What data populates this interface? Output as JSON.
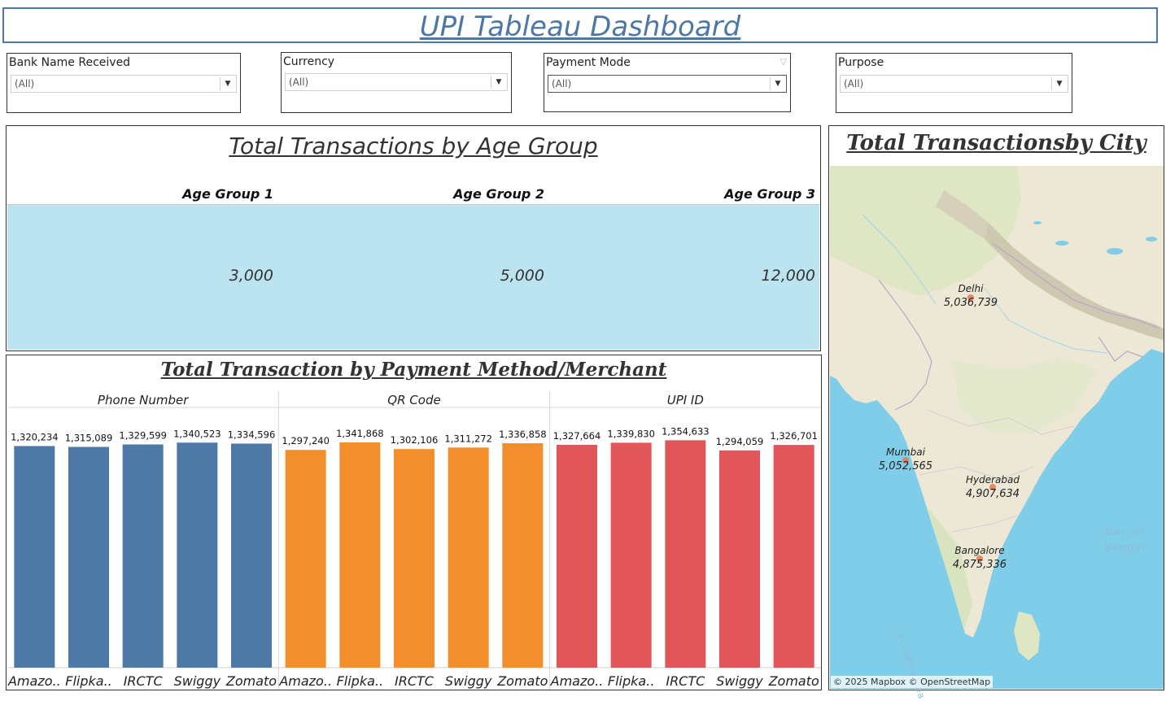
{
  "title": "UPI Tableau Dashboard",
  "filters": [
    {
      "label": "Bank Name Received",
      "value": "(All)"
    },
    {
      "label": "Currency",
      "value": "(All)"
    },
    {
      "label": "Payment Mode",
      "value": "(All)"
    },
    {
      "label": "Purpose",
      "value": "(All)"
    }
  ],
  "age_panel": {
    "title": "Total Transactions by Age Group",
    "groups": [
      {
        "label": "Age Group 1",
        "value": "3,000"
      },
      {
        "label": "Age Group 2",
        "value": "5,000"
      },
      {
        "label": "Age Group 3",
        "value": "12,000"
      }
    ]
  },
  "payment_panel": {
    "title": "Total Transaction by Payment Method/Merchant"
  },
  "map_panel": {
    "title": "Total Transactionsby City",
    "sea_label": "Bay of\nBengal",
    "lacc_label": "Laccadive Sea",
    "attribution": "© 2025 Mapbox © OpenStreetMap",
    "cities": [
      {
        "name": "Delhi",
        "value": "5,036,739"
      },
      {
        "name": "Mumbai",
        "value": "5,052,565"
      },
      {
        "name": "Hyderabad",
        "value": "4,907,634"
      },
      {
        "name": "Bangalore",
        "value": "4,875,336"
      }
    ]
  },
  "chart_data": {
    "type": "bar",
    "title": "Total Transaction by Payment Method/Merchant",
    "ylim": [
      0,
      1400000
    ],
    "grid": false,
    "groups": [
      {
        "name": "Phone Number",
        "color": "#4e79a7",
        "categories": [
          "Amazo..",
          "Flipka..",
          "IRCTC",
          "Swiggy",
          "Zomato"
        ],
        "values": [
          1320234,
          1315089,
          1329599,
          1340523,
          1334596
        ]
      },
      {
        "name": "QR Code",
        "color": "#f28e2b",
        "categories": [
          "Amazo..",
          "Flipka..",
          "IRCTC",
          "Swiggy",
          "Zomato"
        ],
        "values": [
          1297240,
          1341868,
          1302106,
          1311272,
          1336858
        ]
      },
      {
        "name": "UPI ID",
        "color": "#e15759",
        "categories": [
          "Amazo..",
          "Flipka..",
          "IRCTC",
          "Swiggy",
          "Zomato"
        ],
        "values": [
          1327664,
          1339830,
          1354633,
          1294059,
          1326701
        ]
      }
    ]
  }
}
